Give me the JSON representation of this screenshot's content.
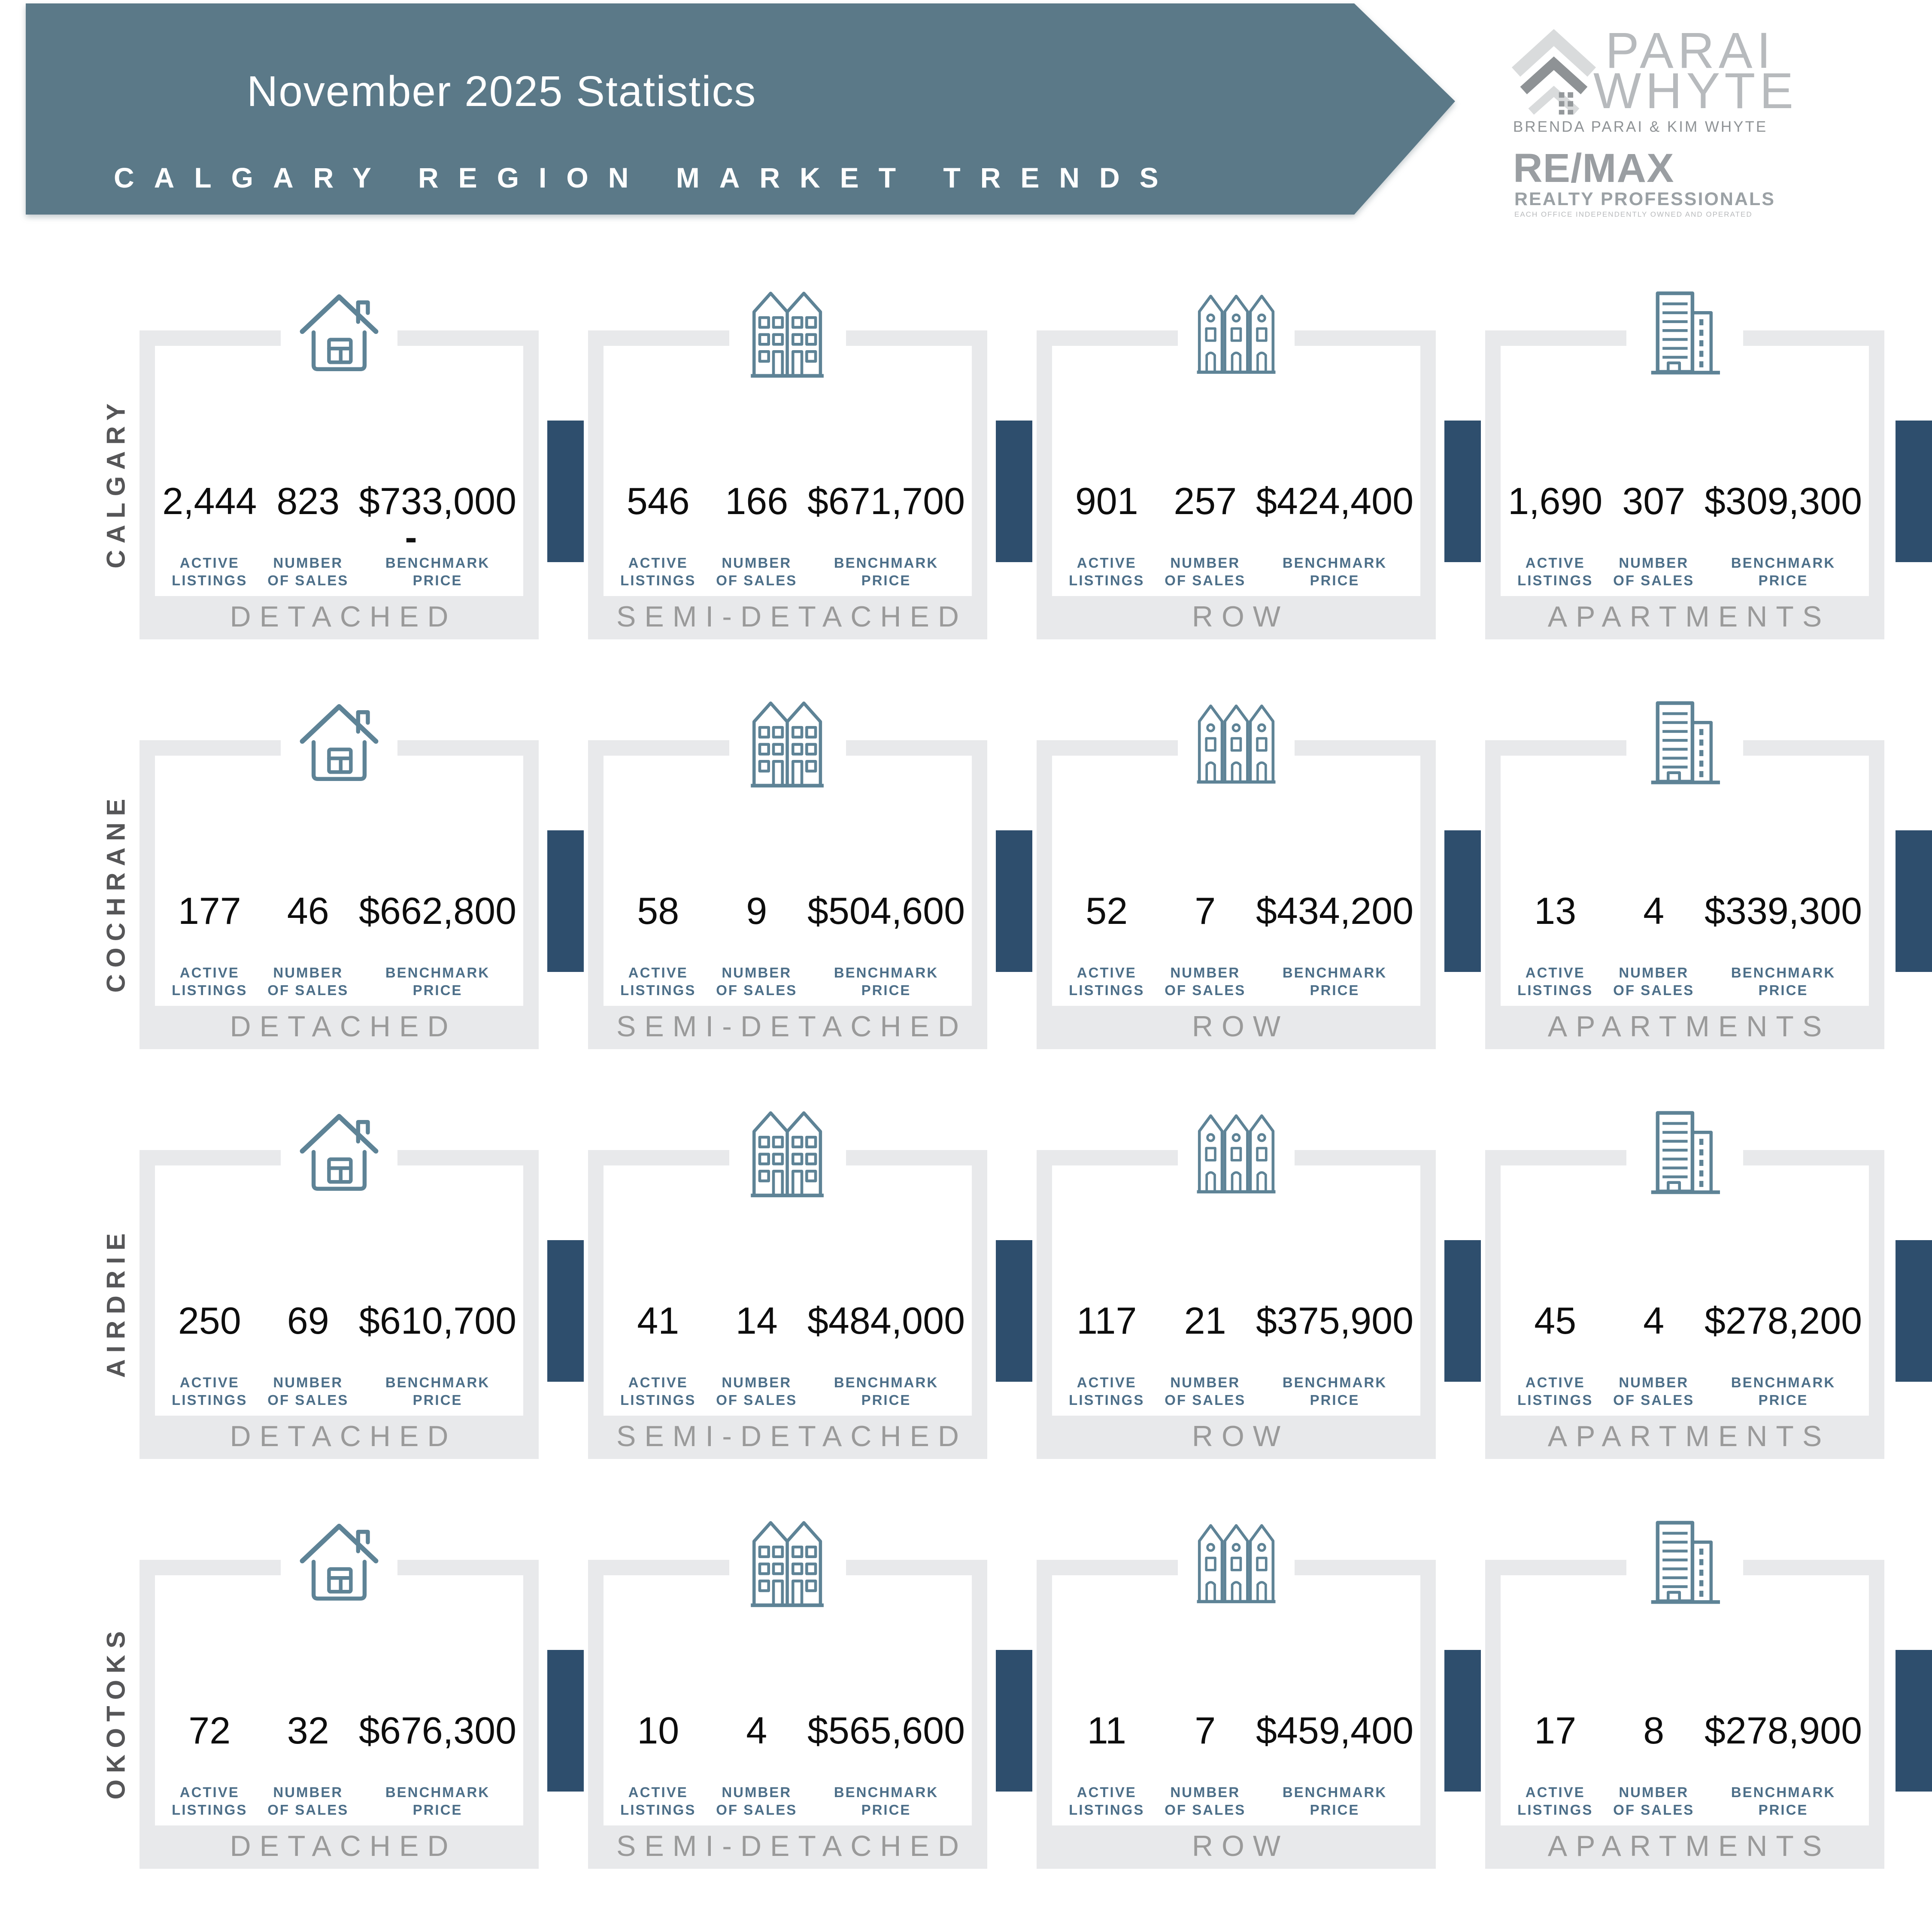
{
  "header": {
    "title": "November 2025 Statistics",
    "subtitle": "CALGARY REGION MARKET TRENDS"
  },
  "logo": {
    "brand_top": "PARAI",
    "brand_bottom": "WHYTE",
    "agents": "BRENDA PARAI & KIM WHYTE",
    "remax": "RE/MAX",
    "brokerage": "REALTY PROFESSIONALS",
    "disclaimer": "EACH OFFICE INDEPENDENTLY OWNED AND OPERATED",
    "roof_icon": "roof-chevron-icon"
  },
  "metric_labels": {
    "active": [
      "ACTIVE",
      "LISTINGS"
    ],
    "sales": [
      "NUMBER",
      "OF SALES"
    ],
    "price": [
      "BENCHMARK",
      "PRICE"
    ]
  },
  "columns": [
    {
      "label": "DETACHED",
      "icon": "detached-house-icon"
    },
    {
      "label": "SEMI-DETACHED",
      "icon": "semi-detached-houses-icon"
    },
    {
      "label": "ROW",
      "icon": "row-houses-icon"
    },
    {
      "label": "APARTMENTS",
      "icon": "apartment-building-icon"
    }
  ],
  "regions": [
    {
      "name": "CALGARY",
      "cells": [
        {
          "active": "2,444",
          "sales": "823",
          "price": "$733,000",
          "mark": "-"
        },
        {
          "active": "546",
          "sales": "166",
          "price": "$671,700"
        },
        {
          "active": "901",
          "sales": "257",
          "price": "$424,400"
        },
        {
          "active": "1,690",
          "sales": "307",
          "price": "$309,300"
        }
      ]
    },
    {
      "name": "COCHRANE",
      "cells": [
        {
          "active": "177",
          "sales": "46",
          "price": "$662,800"
        },
        {
          "active": "58",
          "sales": "9",
          "price": "$504,600"
        },
        {
          "active": "52",
          "sales": "7",
          "price": "$434,200"
        },
        {
          "active": "13",
          "sales": "4",
          "price": "$339,300"
        }
      ]
    },
    {
      "name": "AIRDRIE",
      "cells": [
        {
          "active": "250",
          "sales": "69",
          "price": "$610,700"
        },
        {
          "active": "41",
          "sales": "14",
          "price": "$484,000"
        },
        {
          "active": "117",
          "sales": "21",
          "price": "$375,900"
        },
        {
          "active": "45",
          "sales": "4",
          "price": "$278,200"
        }
      ]
    },
    {
      "name": "OKOTOKS",
      "cells": [
        {
          "active": "72",
          "sales": "32",
          "price": "$676,300"
        },
        {
          "active": "10",
          "sales": "4",
          "price": "$565,600"
        },
        {
          "active": "11",
          "sales": "7",
          "price": "$459,400"
        },
        {
          "active": "17",
          "sales": "8",
          "price": "$278,900"
        }
      ]
    }
  ],
  "colors": {
    "banner": "#5b7988",
    "divider_tab": "#2e4e6d",
    "icon_stroke": "#5e8396",
    "metric_label": "#4d6f89",
    "frame": "#e8e9eb",
    "type_label": "#9a9a9a",
    "region_label": "#565658"
  },
  "chart_data": {
    "type": "table",
    "title": "November 2025 Statistics — Calgary Region Market Trends",
    "row_header": [
      "CALGARY",
      "COCHRANE",
      "AIRDRIE",
      "OKOTOKS"
    ],
    "column_header": [
      "DETACHED",
      "SEMI-DETACHED",
      "ROW",
      "APARTMENTS"
    ],
    "metrics": [
      "Active Listings",
      "Number of Sales",
      "Benchmark Price"
    ],
    "values": {
      "CALGARY": {
        "DETACHED": [
          2444,
          823,
          733000
        ],
        "SEMI-DETACHED": [
          546,
          166,
          671700
        ],
        "ROW": [
          901,
          257,
          424400
        ],
        "APARTMENTS": [
          1690,
          307,
          309300
        ]
      },
      "COCHRANE": {
        "DETACHED": [
          177,
          46,
          662800
        ],
        "SEMI-DETACHED": [
          58,
          9,
          504600
        ],
        "ROW": [
          52,
          7,
          434200
        ],
        "APARTMENTS": [
          13,
          4,
          339300
        ]
      },
      "AIRDRIE": {
        "DETACHED": [
          250,
          69,
          610700
        ],
        "SEMI-DETACHED": [
          41,
          14,
          484000
        ],
        "ROW": [
          117,
          21,
          375900
        ],
        "APARTMENTS": [
          45,
          4,
          278200
        ]
      },
      "OKOTOKS": {
        "DETACHED": [
          72,
          32,
          676300
        ],
        "SEMI-DETACHED": [
          10,
          4,
          565600
        ],
        "ROW": [
          11,
          7,
          459400
        ],
        "APARTMENTS": [
          17,
          8,
          278900
        ]
      }
    }
  }
}
